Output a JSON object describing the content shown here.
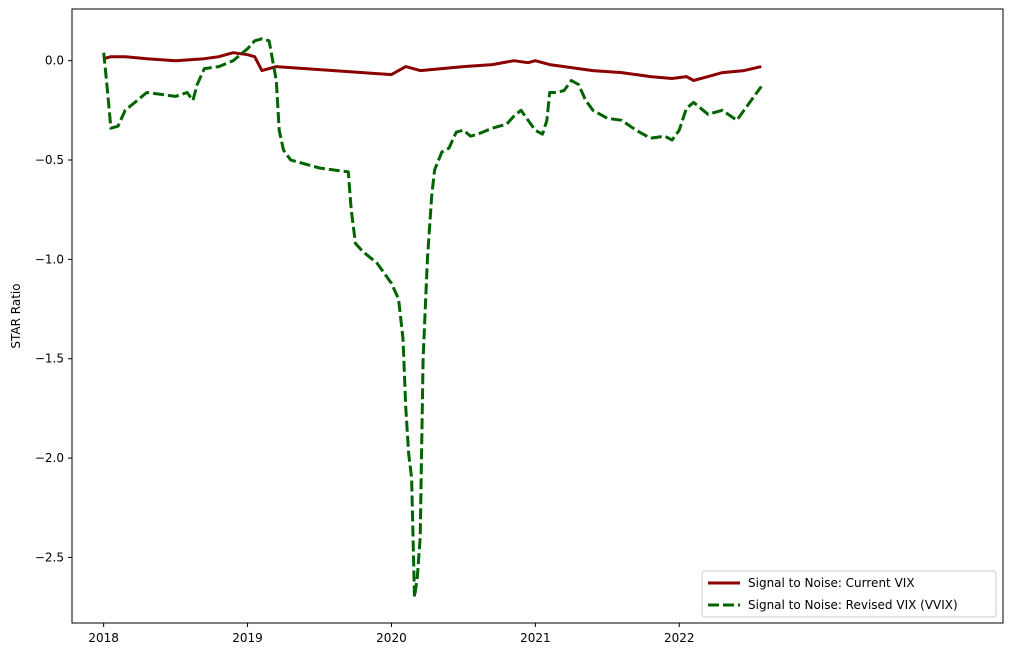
{
  "chart_data": {
    "type": "line",
    "title": "",
    "xlabel": "",
    "ylabel": "STAR Ratio",
    "xlim": [
      2017.78,
      2024.25
    ],
    "ylim": [
      -2.83,
      0.26
    ],
    "grid": false,
    "legend_position": "bottom-right",
    "xticks": [
      {
        "value": 2018,
        "label": "2018"
      },
      {
        "value": 2019,
        "label": "2019"
      },
      {
        "value": 2020,
        "label": "2020"
      },
      {
        "value": 2021,
        "label": "2021"
      },
      {
        "value": 2022,
        "label": "2022"
      }
    ],
    "yticks": [
      {
        "value": 0.0,
        "label": "0.0"
      },
      {
        "value": -0.5,
        "label": "−0.5"
      },
      {
        "value": -1.0,
        "label": "−1.0"
      },
      {
        "value": -1.5,
        "label": "−1.5"
      },
      {
        "value": -2.0,
        "label": "−2.0"
      },
      {
        "value": -2.5,
        "label": "−2.5"
      }
    ],
    "series": [
      {
        "name": "Signal to Noise: Current VIX",
        "color": "#8b0000",
        "style": "solid",
        "x": [
          2018.0,
          2018.05,
          2018.15,
          2018.3,
          2018.5,
          2018.7,
          2018.8,
          2018.9,
          2019.0,
          2019.05,
          2019.1,
          2019.2,
          2019.4,
          2019.6,
          2019.8,
          2020.0,
          2020.1,
          2020.2,
          2020.35,
          2020.5,
          2020.7,
          2020.85,
          2020.95,
          2021.0,
          2021.1,
          2021.2,
          2021.4,
          2021.6,
          2021.8,
          2021.95,
          2022.05,
          2022.1,
          2022.2,
          2022.3,
          2022.45,
          2022.57
        ],
        "y": [
          0.01,
          0.02,
          0.02,
          0.01,
          0.0,
          0.01,
          0.02,
          0.04,
          0.03,
          0.02,
          -0.05,
          -0.03,
          -0.04,
          -0.05,
          -0.06,
          -0.07,
          -0.03,
          -0.05,
          -0.04,
          -0.03,
          -0.02,
          0.0,
          -0.01,
          0.0,
          -0.02,
          -0.03,
          -0.05,
          -0.06,
          -0.08,
          -0.09,
          -0.08,
          -0.1,
          -0.08,
          -0.06,
          -0.05,
          -0.03
        ]
      },
      {
        "name": "Signal to Noise: Revised VIX (VVIX)",
        "color": "#006400",
        "style": "dashed",
        "x": [
          2018.0,
          2018.02,
          2018.05,
          2018.1,
          2018.15,
          2018.2,
          2018.3,
          2018.4,
          2018.5,
          2018.58,
          2018.62,
          2018.65,
          2018.7,
          2018.8,
          2018.9,
          2019.0,
          2019.05,
          2019.1,
          2019.15,
          2019.2,
          2019.22,
          2019.25,
          2019.3,
          2019.4,
          2019.5,
          2019.6,
          2019.7,
          2019.72,
          2019.75,
          2019.8,
          2019.9,
          2019.95,
          2020.0,
          2020.05,
          2020.08,
          2020.1,
          2020.12,
          2020.14,
          2020.16,
          2020.18,
          2020.2,
          2020.22,
          2020.25,
          2020.28,
          2020.3,
          2020.35,
          2020.4,
          2020.45,
          2020.5,
          2020.55,
          2020.6,
          2020.7,
          2020.8,
          2020.85,
          2020.9,
          2020.95,
          2021.0,
          2021.05,
          2021.08,
          2021.1,
          2021.15,
          2021.2,
          2021.25,
          2021.3,
          2021.35,
          2021.4,
          2021.5,
          2021.6,
          2021.7,
          2021.8,
          2021.9,
          2021.95,
          2022.0,
          2022.05,
          2022.1,
          2022.2,
          2022.3,
          2022.4,
          2022.5,
          2022.57
        ],
        "y": [
          0.04,
          -0.1,
          -0.34,
          -0.33,
          -0.25,
          -0.22,
          -0.16,
          -0.17,
          -0.18,
          -0.16,
          -0.2,
          -0.12,
          -0.04,
          -0.03,
          0.0,
          0.06,
          0.1,
          0.11,
          0.1,
          -0.1,
          -0.35,
          -0.45,
          -0.5,
          -0.52,
          -0.54,
          -0.55,
          -0.56,
          -0.75,
          -0.92,
          -0.96,
          -1.02,
          -1.07,
          -1.12,
          -1.2,
          -1.4,
          -1.75,
          -1.98,
          -2.1,
          -2.7,
          -2.6,
          -2.4,
          -1.5,
          -1.0,
          -0.68,
          -0.55,
          -0.46,
          -0.44,
          -0.36,
          -0.35,
          -0.38,
          -0.37,
          -0.34,
          -0.32,
          -0.28,
          -0.25,
          -0.3,
          -0.35,
          -0.37,
          -0.3,
          -0.16,
          -0.16,
          -0.15,
          -0.1,
          -0.12,
          -0.2,
          -0.25,
          -0.29,
          -0.3,
          -0.35,
          -0.39,
          -0.38,
          -0.4,
          -0.35,
          -0.24,
          -0.21,
          -0.27,
          -0.25,
          -0.3,
          -0.2,
          -0.13
        ]
      }
    ]
  }
}
